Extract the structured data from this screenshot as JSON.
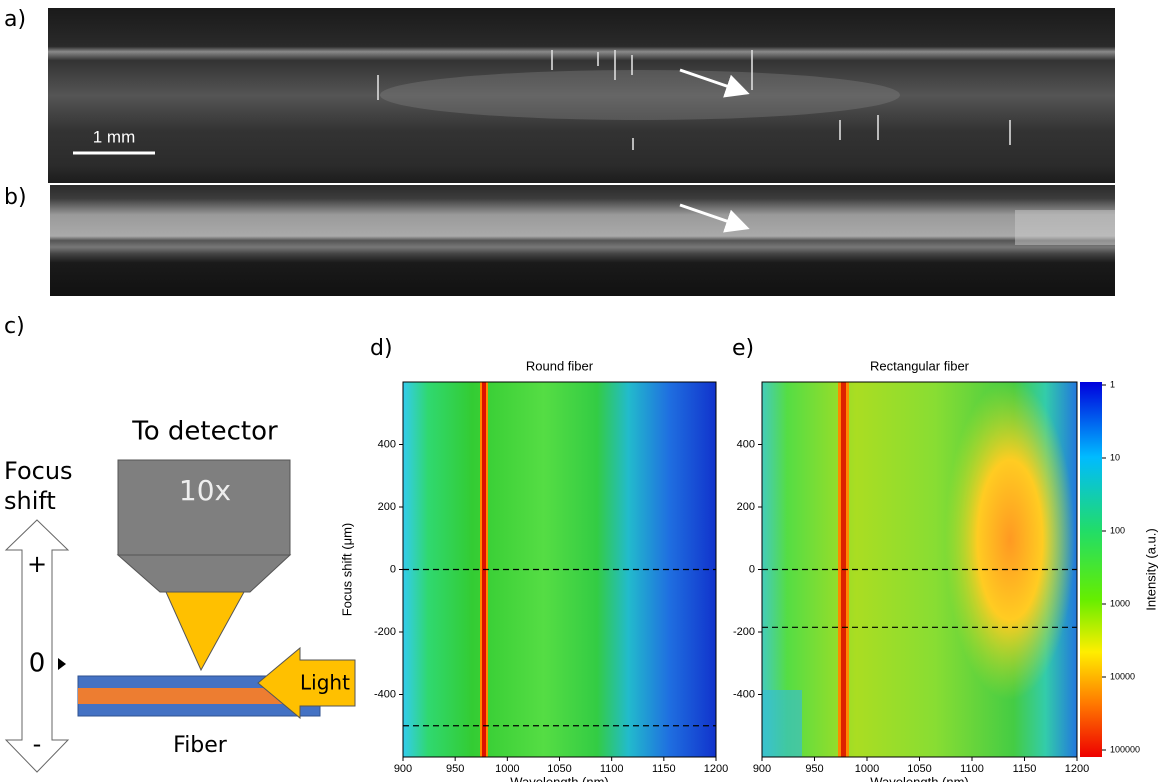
{
  "panels": {
    "a": "a)",
    "b": "b)",
    "c": "c)",
    "d": "d)",
    "e": "e)"
  },
  "scale_bar": "1 mm",
  "diagram": {
    "top": "To detector",
    "objective": "10x",
    "focus_line1": "Focus",
    "focus_line2": "shift",
    "plus": "+",
    "zero": "0",
    "minus": "-",
    "light": "Light",
    "fiber": "Fiber"
  },
  "chart_data": [
    {
      "type": "heatmap",
      "title": "Round fiber",
      "x_label": "Wavelength (nm)",
      "y_label": "Focus shift (μm)",
      "xlim": [
        900,
        1200
      ],
      "xticks": [
        900,
        950,
        1000,
        1050,
        1100,
        1150,
        1200
      ],
      "ylim": [
        -600,
        600
      ],
      "yticks": [
        -400,
        -200,
        0,
        200,
        400
      ],
      "hlines": [
        0,
        -500
      ]
    },
    {
      "type": "heatmap",
      "title": "Rectangular fiber",
      "x_label": "Wavelength (nm)",
      "xlim": [
        900,
        1200
      ],
      "xticks": [
        900,
        950,
        1000,
        1050,
        1100,
        1150,
        1200
      ],
      "ylim": [
        -600,
        600
      ],
      "yticks": [
        -400,
        -200,
        0,
        200,
        400
      ],
      "hlines": [
        0,
        -185
      ],
      "colorbar": {
        "label": "Intensity (a.u.)",
        "log": true,
        "reversed": true,
        "lim": [
          1,
          100000
        ],
        "ticks": [
          1,
          10,
          100,
          1000,
          10000,
          100000
        ]
      }
    }
  ]
}
